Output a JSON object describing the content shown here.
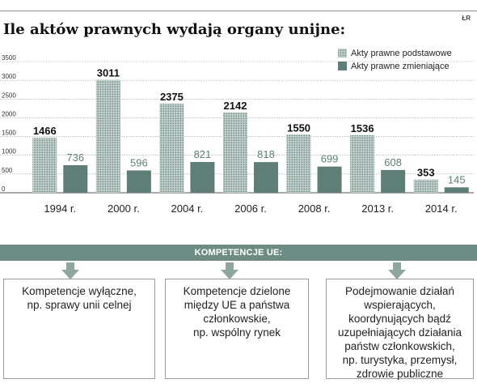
{
  "source_mark": "ŁR",
  "title": "Ile aktów prawnych wydają organy unijne:",
  "chart_data": {
    "type": "bar",
    "categories": [
      "1994 r.",
      "2000 r.",
      "2004 r.",
      "2006 r.",
      "2008 r.",
      "2013 r.",
      "2014 r."
    ],
    "series": [
      {
        "name": "Akty prawne podstawowe",
        "values": [
          1466,
          3011,
          2375,
          2142,
          1550,
          1536,
          353
        ],
        "color": "#6f8e87",
        "pattern": "dotted"
      },
      {
        "name": "Akty prawne zmieniające",
        "values": [
          736,
          596,
          821,
          818,
          699,
          608,
          145
        ],
        "color": "#5f7e77",
        "pattern": "solid"
      }
    ],
    "ylim": [
      0,
      3500
    ],
    "yticks": [
      0,
      500,
      1000,
      1500,
      2000,
      2500,
      3000,
      3500
    ],
    "grid": true,
    "legend_position": "top-right"
  },
  "competences": {
    "header": "KOMPETENCJE UE:",
    "boxes": [
      "Kompetencje wyłączne,\nnp. sprawy unii celnej",
      "Kompetencje dzielone\nmiędzy UE a państwa\nczłonkowskie,\nnp. wspólny rynek",
      "Podejmowanie działań\nwspierających,\nkoordynujących bądź\nuzupełniających działania\npaństw członkowskich,\nnp. turystyka, przemysł,\nzdrowie publiczne"
    ]
  }
}
